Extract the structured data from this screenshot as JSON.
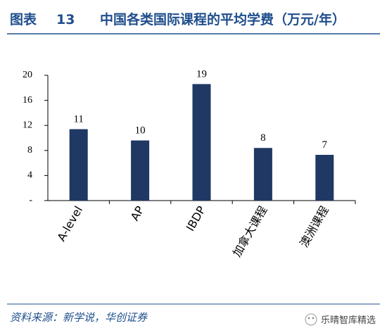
{
  "figure_label": "图表",
  "figure_number": "13",
  "chart_data": {
    "type": "bar",
    "title": "中国各类国际课程的平均学费（万元/年）",
    "categories": [
      "A-level",
      "AP",
      "IBDP",
      "加拿大课程",
      "澳洲课程"
    ],
    "values": [
      11.4,
      9.6,
      18.6,
      8.4,
      7.3
    ],
    "value_labels": [
      "11",
      "10",
      "19",
      "8",
      "7"
    ],
    "color": "#1f3864",
    "ylim": [
      0,
      20
    ],
    "yticks": [
      {
        "value": 0,
        "label": "-"
      },
      4,
      8,
      12,
      16,
      20
    ]
  },
  "source": "资料来源：新学说，华创证券",
  "watermark": "乐晴智库精选"
}
